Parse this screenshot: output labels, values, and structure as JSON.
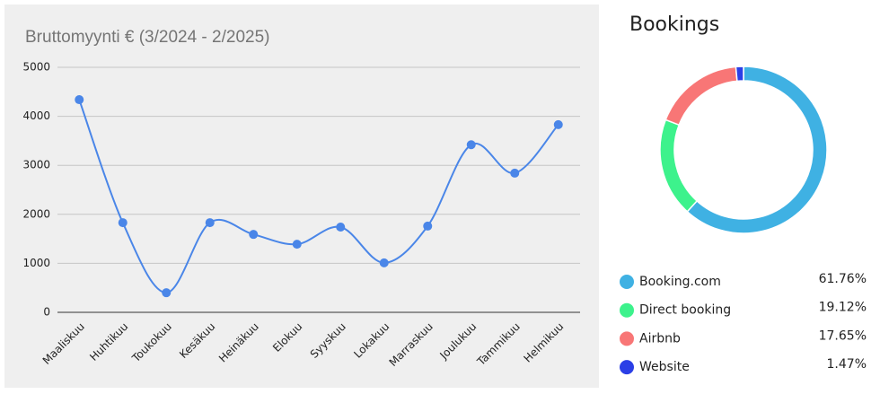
{
  "chart_data": [
    {
      "type": "line",
      "title": "Bruttomyynti € (3/2024 - 2/2025)",
      "categories": [
        "Maaliskuu",
        "Huhtikuu",
        "Toukokuu",
        "Kesäkuu",
        "Heinäkuu",
        "Elokuu",
        "Syyskuu",
        "Lokakuu",
        "Marraskuu",
        "Joulukuu",
        "Tammikuu",
        "Helmikuu"
      ],
      "values": [
        4340,
        1830,
        400,
        1830,
        1590,
        1390,
        1740,
        1010,
        1760,
        3420,
        2840,
        3830
      ],
      "color": "#4a86e8",
      "ylim": [
        0,
        5000
      ],
      "yticks": [
        0,
        1000,
        2000,
        3000,
        4000,
        5000
      ],
      "grid": true,
      "smooth": true
    },
    {
      "type": "donut",
      "title": "Bookings",
      "categories": [
        "Booking.com",
        "Direct booking",
        "Airbnb",
        "Website"
      ],
      "values": [
        61.76,
        19.12,
        17.65,
        1.47
      ],
      "value_labels": [
        "61.76%",
        "19.12%",
        "17.65%",
        "1.47%"
      ],
      "colors": [
        "#3fb1e3",
        "#3df28c",
        "#f87676",
        "#2b3fe6"
      ]
    }
  ]
}
